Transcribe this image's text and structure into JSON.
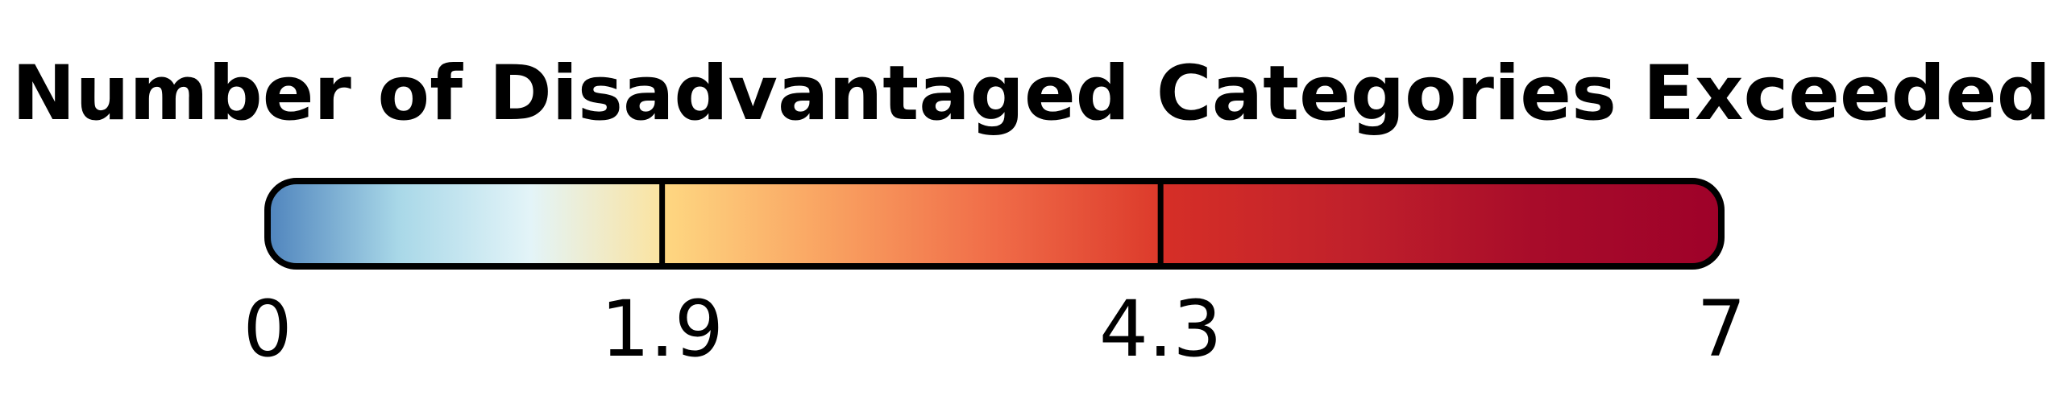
{
  "chart_data": {
    "type": "colorbar",
    "title": "Number of Disadvantaged Categories Exceeded",
    "range": [
      0,
      7
    ],
    "breaks": [
      1.9,
      4.3
    ],
    "tick_values": [
      0,
      1.9,
      4.3,
      7
    ],
    "tick_labels": [
      "0",
      "1.9",
      "4.3",
      "7"
    ],
    "segments": [
      {
        "from": 0,
        "to": 1.9,
        "colors": [
          "#4f84bd",
          "#a9d8e8",
          "#e3f4f8",
          "#fbe3a0"
        ]
      },
      {
        "from": 1.9,
        "to": 4.3,
        "colors": [
          "#fed882",
          "#f9a261",
          "#f06c48",
          "#dc3a2b"
        ]
      },
      {
        "from": 4.3,
        "to": 7,
        "colors": [
          "#d62f27",
          "#c1212b",
          "#a80c2a",
          "#9e0129"
        ]
      }
    ],
    "colors": {
      "outline": "#000000",
      "text": "#000000",
      "background": "#ffffff"
    }
  }
}
